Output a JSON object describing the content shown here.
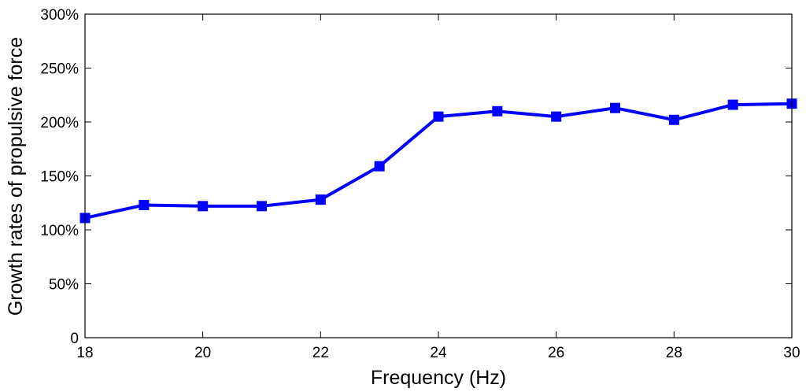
{
  "chart_data": {
    "type": "line",
    "xlabel": "Frequency (Hz)",
    "ylabel": "Growth rates of propulsive force",
    "xlim": [
      18,
      30
    ],
    "ylim": [
      0,
      300
    ],
    "xticks": [
      18,
      20,
      22,
      24,
      26,
      28,
      30
    ],
    "yticks": [
      0,
      50,
      100,
      150,
      200,
      250,
      300
    ],
    "ytick_labels": [
      "0",
      "50%",
      "100%",
      "150%",
      "200%",
      "250%",
      "300%"
    ],
    "grid": false,
    "series": [
      {
        "color": "#0000ff",
        "marker": "square",
        "x": [
          18,
          19,
          20,
          21,
          22,
          23,
          24,
          25,
          26,
          27,
          28,
          29,
          30
        ],
        "y": [
          111,
          123,
          122,
          122,
          128,
          159,
          205,
          210,
          205,
          213,
          202,
          216,
          217
        ]
      }
    ]
  }
}
